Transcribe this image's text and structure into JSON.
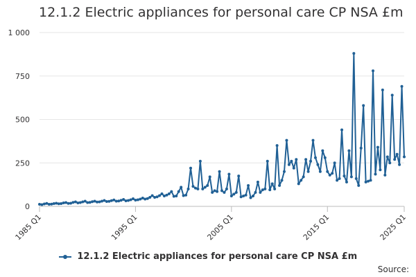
{
  "chart": {
    "title": "12.1.2 Electric appliances for personal care CP NSA £m",
    "source_label": "Source:",
    "color": "#206095"
  },
  "chart_data": {
    "type": "line",
    "title": "12.1.2 Electric appliances for personal care CP NSA £m",
    "xlabel": "",
    "ylabel": "",
    "ylim": [
      0,
      1000
    ],
    "yticks": [
      "0",
      "250",
      "500",
      "750",
      "1 000"
    ],
    "xticks": [
      "1985 Q1",
      "1995 Q1",
      "2005 Q1",
      "2015 Q1",
      "2025 Q1"
    ],
    "grid": true,
    "legend_position": "bottom",
    "x_start": "1985 Q1",
    "x_frequency": "quarterly",
    "series": [
      {
        "name": "12.1.2 Electric appliances for personal care CP NSA £m",
        "values": [
          12,
          10,
          14,
          17,
          12,
          13,
          16,
          18,
          15,
          16,
          20,
          22,
          17,
          18,
          23,
          26,
          20,
          22,
          26,
          30,
          22,
          23,
          27,
          30,
          25,
          26,
          30,
          34,
          28,
          29,
          33,
          37,
          30,
          31,
          35,
          40,
          32,
          34,
          38,
          44,
          36,
          38,
          42,
          48,
          42,
          45,
          52,
          62,
          52,
          55,
          62,
          72,
          60,
          65,
          72,
          85,
          58,
          60,
          85,
          110,
          62,
          65,
          100,
          220,
          115,
          105,
          100,
          260,
          100,
          110,
          120,
          170,
          80,
          90,
          85,
          200,
          90,
          80,
          100,
          185,
          60,
          70,
          80,
          175,
          55,
          60,
          65,
          120,
          50,
          60,
          80,
          140,
          80,
          95,
          100,
          260,
          95,
          130,
          100,
          350,
          120,
          150,
          200,
          380,
          240,
          260,
          220,
          270,
          130,
          150,
          170,
          270,
          200,
          260,
          380,
          280,
          240,
          200,
          320,
          280,
          200,
          180,
          190,
          250,
          150,
          160,
          440,
          175,
          140,
          320,
          170,
          880,
          160,
          120,
          335,
          580,
          140,
          145,
          150,
          780,
          185,
          340,
          210,
          670,
          180,
          285,
          250,
          640,
          270,
          300,
          240,
          690,
          285
        ]
      }
    ]
  }
}
